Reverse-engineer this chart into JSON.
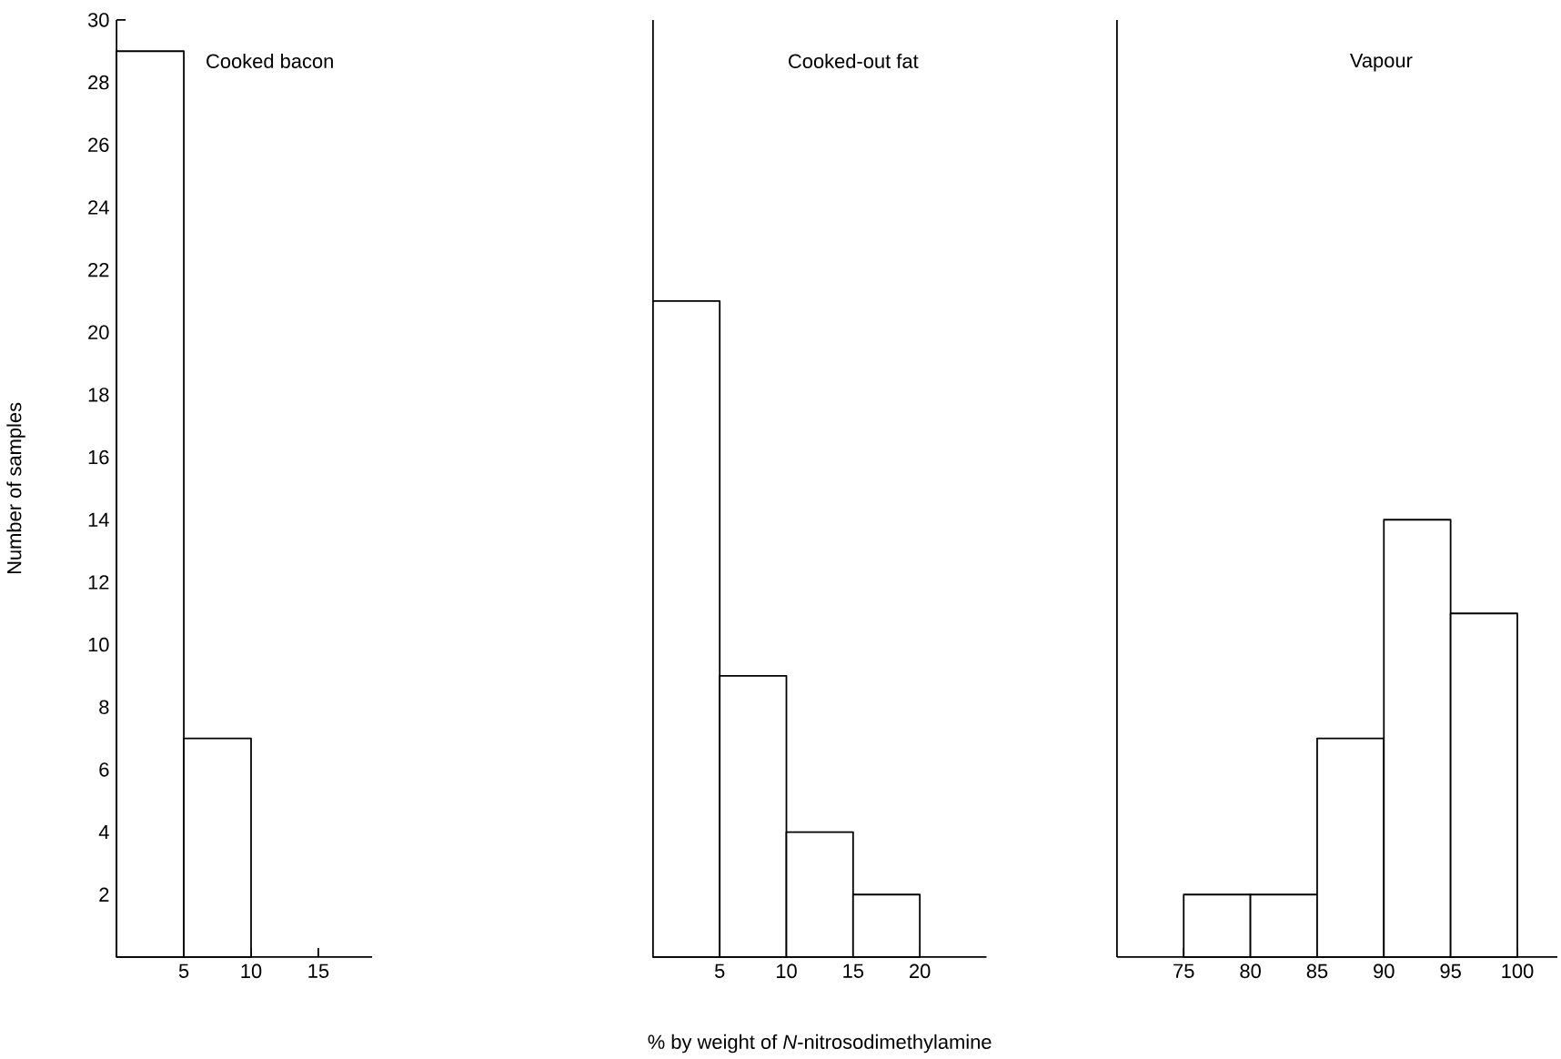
{
  "chart_data": [
    {
      "type": "histogram",
      "title": "Cooked bacon",
      "ylabel": "Number of samples",
      "bins": [
        0,
        5,
        10
      ],
      "values": [
        29,
        7
      ],
      "xlim": [
        0,
        19
      ],
      "xticks": [
        5,
        10,
        15
      ],
      "ylim": [
        0,
        30
      ],
      "yticks": [
        2,
        4,
        6,
        8,
        10,
        12,
        14,
        16,
        18,
        20,
        22,
        24,
        26,
        28,
        30
      ]
    },
    {
      "type": "histogram",
      "title": "Cooked-out fat",
      "xlabel": "% by weight of *N*-nitrosodimethylamine",
      "bins": [
        0,
        5,
        10,
        15,
        20
      ],
      "values": [
        21,
        9,
        4,
        2
      ],
      "xlim": [
        0,
        25
      ],
      "xticks": [
        5,
        10,
        15,
        20
      ],
      "ylim": [
        0,
        30
      ],
      "tick_labels": "x"
    },
    {
      "type": "histogram",
      "title": "Vapour",
      "bins": [
        75,
        80,
        85,
        90,
        95,
        100
      ],
      "values": [
        2,
        2,
        7,
        14,
        11
      ],
      "xlim": [
        70,
        103
      ],
      "xticks": [
        75,
        80,
        85,
        90,
        95,
        100
      ],
      "ylim": [
        0,
        30
      ],
      "tick_labels": "x"
    }
  ]
}
